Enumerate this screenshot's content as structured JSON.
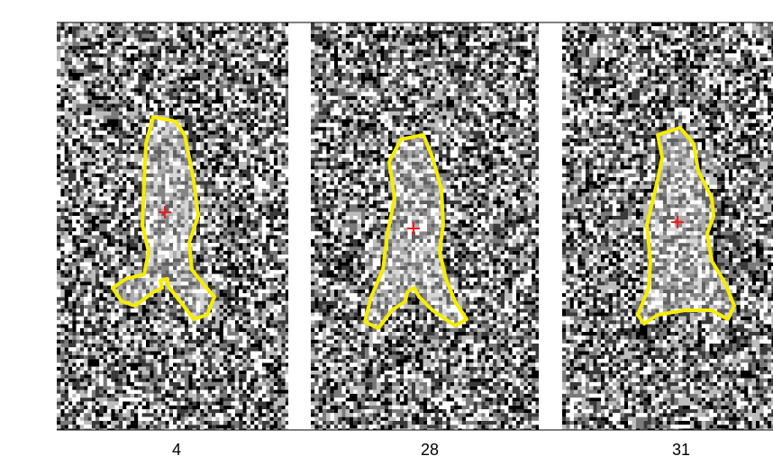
{
  "panels": [
    {
      "label": "4"
    },
    {
      "label": "28"
    },
    {
      "label": "31"
    }
  ]
}
